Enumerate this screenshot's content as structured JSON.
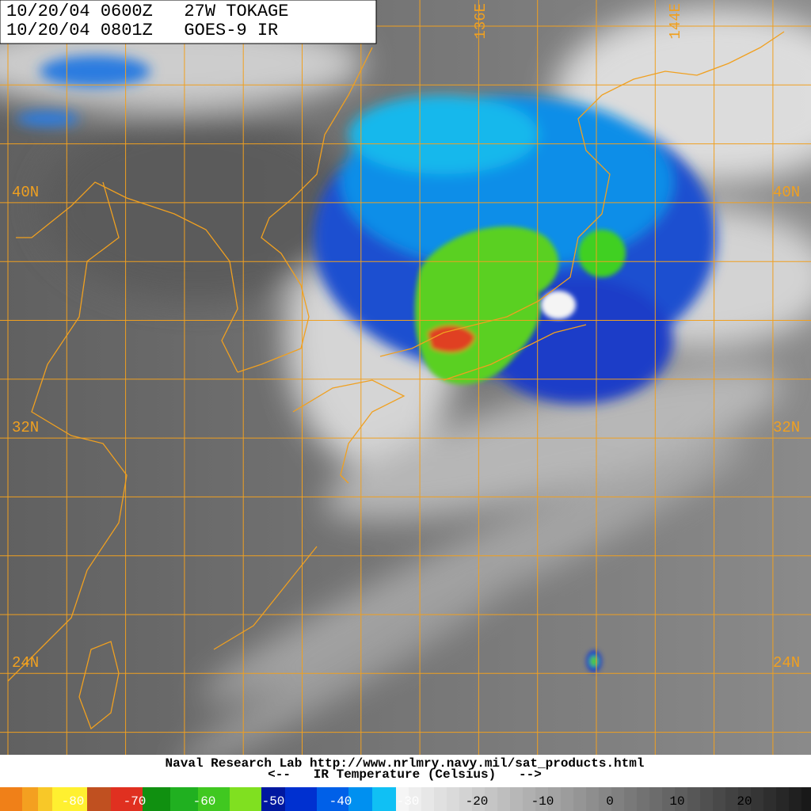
{
  "header": {
    "line1": "10/20/04 0600Z   27W TOKAGE",
    "line2": "10/20/04 0801Z   GOES-9 IR"
  },
  "map": {
    "latitude_labels": [
      "40N",
      "32N",
      "24N"
    ],
    "longitude_labels": [
      "136E",
      "144E"
    ]
  },
  "footer": {
    "credit": "Naval Research Lab http://www.nrlmry.navy.mil/sat_products.html",
    "scale_title": "<--   IR Temperature (Celsius)   -->"
  },
  "colorbar": {
    "labels": [
      -80,
      -70,
      -60,
      -50,
      -40,
      -30,
      -20,
      -10,
      0,
      10,
      20
    ]
  }
}
